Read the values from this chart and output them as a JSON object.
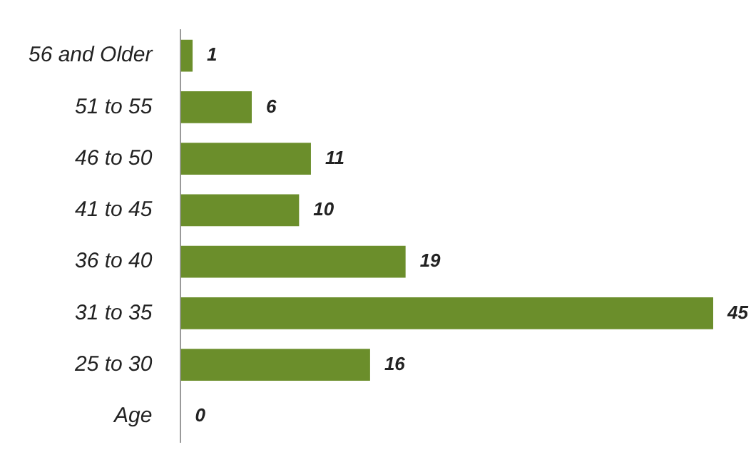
{
  "chart_data": {
    "type": "bar",
    "orientation": "horizontal",
    "categories": [
      "56 and Older",
      "51 to 55",
      "46 to 50",
      "41 to 45",
      "36 to 40",
      "31 to 35",
      "25 to 30",
      "Age"
    ],
    "values": [
      1,
      6,
      11,
      10,
      19,
      45,
      16,
      0
    ],
    "color": "#6b8e2b",
    "data_labels": true,
    "legend": false
  }
}
